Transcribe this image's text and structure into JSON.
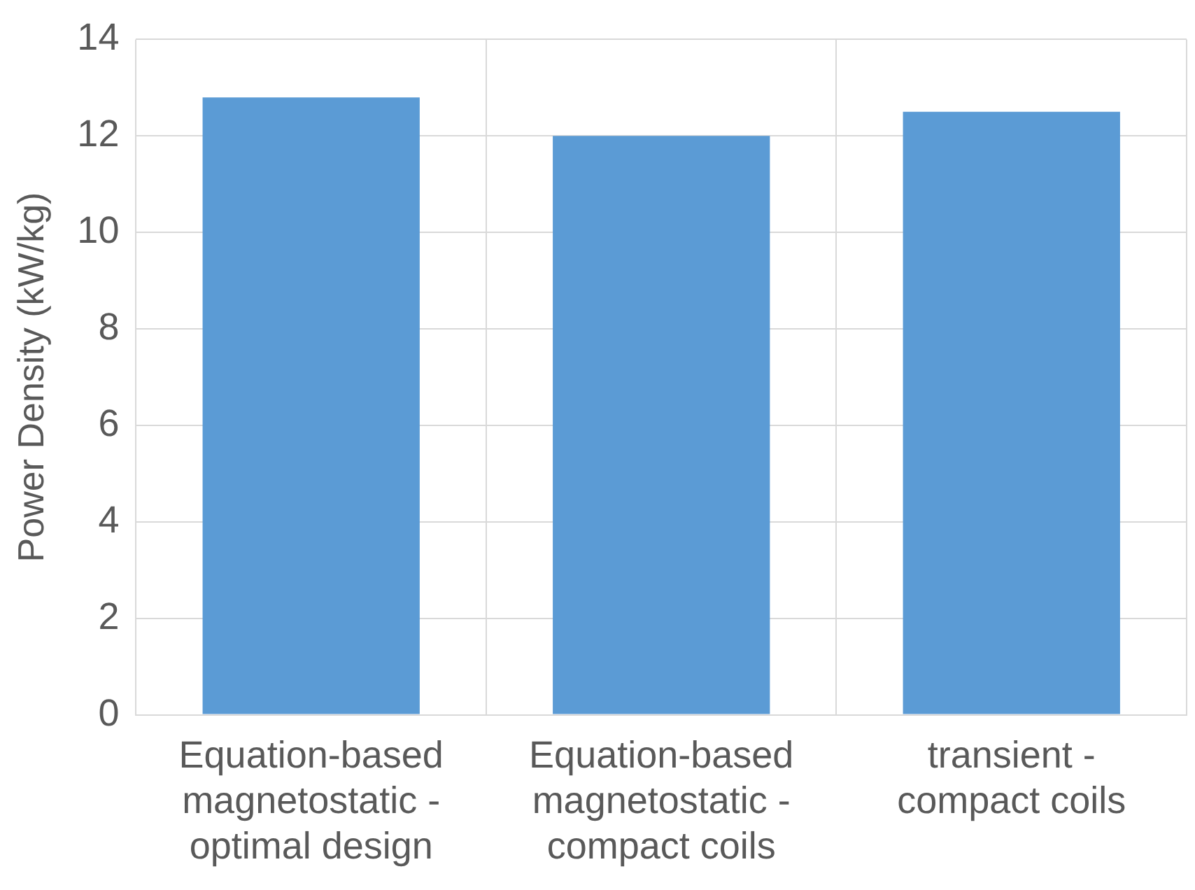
{
  "chart_data": {
    "type": "bar",
    "ylabel": "Power Density (kW/kg)",
    "categories": [
      "Equation-based magnetostatic - optimal design",
      "Equation-based magnetostatic - compact coils",
      "transient - compact coils"
    ],
    "values": [
      12.8,
      12.0,
      12.5
    ],
    "color": "#5b9bd5",
    "ylim": [
      0,
      14
    ],
    "yticks": [
      0,
      2,
      4,
      6,
      8,
      10,
      12,
      14
    ],
    "grid": true
  }
}
